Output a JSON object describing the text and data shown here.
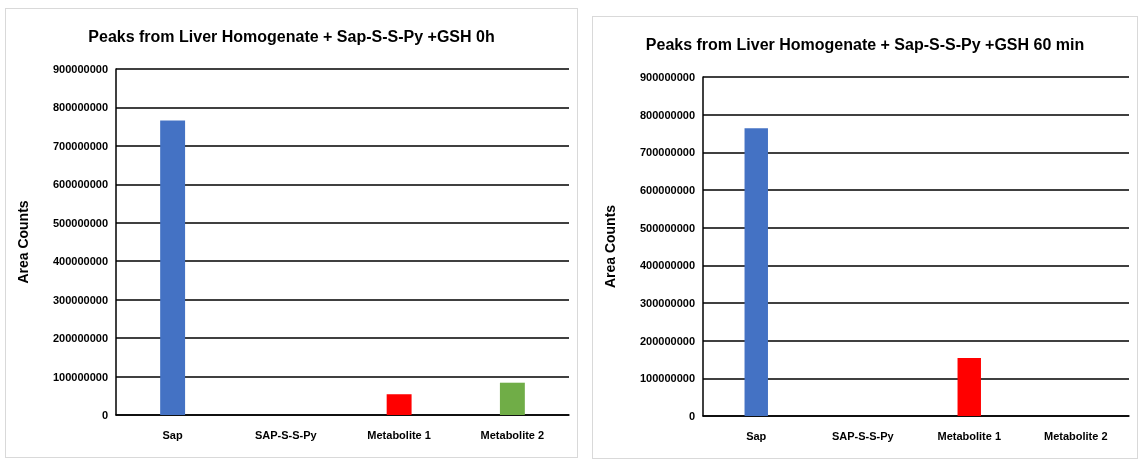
{
  "chart_data": [
    {
      "type": "bar",
      "title": "Peaks from Liver Homogenate + Sap-S-S-Py +GSH 0h",
      "ylabel": "Area Counts",
      "categories": [
        "Sap",
        "SAP-S-S-Py",
        "Metabolite 1",
        "Metabolite 2"
      ],
      "values": [
        766000000,
        0,
        54000000,
        84000000
      ],
      "colors": [
        "#4472c4",
        "#4472c4",
        "#ff0000",
        "#70ad47"
      ],
      "ylim": [
        0,
        900000000
      ],
      "yticks": [
        0,
        100000000,
        200000000,
        300000000,
        400000000,
        500000000,
        600000000,
        700000000,
        800000000,
        900000000
      ],
      "grid": "y"
    },
    {
      "type": "bar",
      "title": "Peaks from Liver Homogenate + Sap-S-S-Py +GSH 60 min",
      "ylabel": "Area Counts",
      "categories": [
        "Sap",
        "SAP-S-S-Py",
        "Metabolite 1",
        "Metabolite 2"
      ],
      "values": [
        764000000,
        0,
        154000000,
        0
      ],
      "colors": [
        "#4472c4",
        "#4472c4",
        "#ff0000",
        "#70ad47"
      ],
      "ylim": [
        0,
        900000000
      ],
      "yticks": [
        0,
        100000000,
        200000000,
        300000000,
        400000000,
        500000000,
        600000000,
        700000000,
        800000000,
        900000000
      ],
      "grid": "y"
    }
  ]
}
